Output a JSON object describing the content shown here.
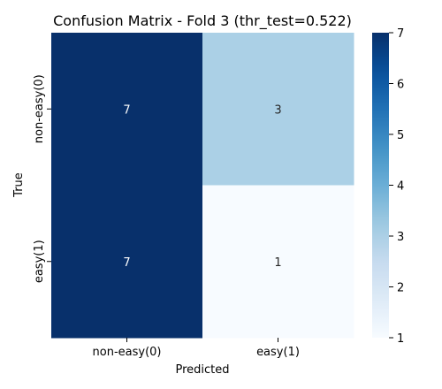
{
  "chart_data": {
    "type": "heatmap",
    "title": "Confusion Matrix - Fold 3 (thr_test=0.522)",
    "xlabel": "Predicted",
    "ylabel": "True",
    "x_categories": [
      "non-easy(0)",
      "easy(1)"
    ],
    "y_categories": [
      "non-easy(0)",
      "easy(1)"
    ],
    "values": [
      [
        7,
        3
      ],
      [
        7,
        1
      ]
    ],
    "colormap": "Blues",
    "color_range": [
      1,
      7
    ],
    "colorbar_ticks": [
      "1",
      "2",
      "3",
      "4",
      "5",
      "6",
      "7"
    ],
    "colors": {
      "low": "#f7fbff",
      "high": "#08306b"
    }
  }
}
